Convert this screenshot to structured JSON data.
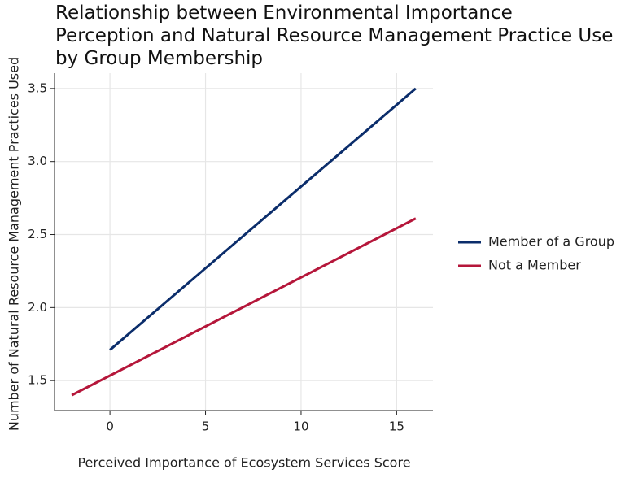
{
  "chart_data": {
    "type": "line",
    "title": "Relationship between Environmental Importance Perception and Natural Resource Management Practice Use by Group Membership",
    "x_label": "Perceived Importance of Ecosystem Services Score",
    "y_label": "Number of Natural Resource Management Practices Used",
    "series": [
      {
        "name": "Member of a Group",
        "color": "#0b2d6b",
        "x": [
          0,
          16
        ],
        "values": [
          1.71,
          3.5
        ]
      },
      {
        "name": "Not a Member",
        "color": "#b5163a",
        "x": [
          -2,
          16
        ],
        "values": [
          1.4,
          2.61
        ]
      }
    ],
    "xlim": [
      -2.9,
      16.9
    ],
    "xticks": [
      0,
      5,
      10,
      15
    ],
    "ylim": [
      1.295,
      3.605
    ],
    "yticks": [
      1.5,
      {
        "value": 2,
        "label": "2.0"
      },
      2.5,
      {
        "value": 3,
        "label": "3.0"
      },
      3.5
    ],
    "grid": true,
    "legend": "right"
  }
}
